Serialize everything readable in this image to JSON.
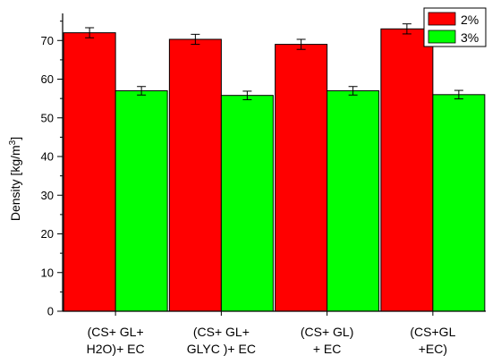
{
  "chart_data": {
    "type": "bar",
    "categories": [
      [
        "(CS+ GL+",
        "H2O)+ EC"
      ],
      [
        "(CS+ GL+",
        "GLYC )+ EC"
      ],
      [
        "(CS+ GL)",
        "+ EC"
      ],
      [
        "(CS+GL",
        "+EC)"
      ]
    ],
    "series": [
      {
        "name": "2%",
        "color": "#ff0000",
        "values": [
          72,
          70.3,
          69,
          73
        ],
        "errors": [
          1.3,
          1.3,
          1.3,
          1.3
        ]
      },
      {
        "name": "3%",
        "color": "#00ff00",
        "values": [
          57,
          55.8,
          57,
          56
        ],
        "errors": [
          1.1,
          1.1,
          1.1,
          1.1
        ]
      }
    ],
    "ylabel": {
      "main": "Density [kg/m",
      "sup": "3",
      "tail": "]"
    },
    "ylim": [
      0,
      77
    ],
    "yticks": [
      0,
      10,
      20,
      30,
      40,
      50,
      60,
      70
    ],
    "grid": false,
    "legend_position": "top-right"
  }
}
